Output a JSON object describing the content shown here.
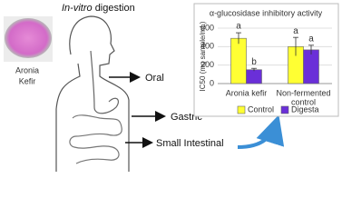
{
  "diagram": {
    "title_italic": "In-vitro",
    "title_rest": "digestion",
    "sample": [
      "Aronia",
      "Kefir"
    ],
    "stages": [
      "Oral",
      "Gastric",
      "Small Intestinal"
    ]
  },
  "chart_data": {
    "type": "bar",
    "title": "α-glucosidase inhibitory activity",
    "y_label": "IC50 (mg sample/mL)",
    "categories": [
      "Aronia kefir",
      [
        "Non-fermented",
        "control"
      ]
    ],
    "series": [
      {
        "name": "Control",
        "color": "#ffff33",
        "values": [
          490,
          400
        ],
        "errors": [
          60,
          100
        ],
        "letters": [
          "a",
          "a"
        ]
      },
      {
        "name": "Digesta",
        "color": "#6a2fd8",
        "values": [
          150,
          365
        ],
        "errors": [
          15,
          50
        ],
        "letters": [
          "b",
          "a"
        ]
      }
    ],
    "ylim": [
      0,
      600
    ],
    "yticks": [
      0,
      200,
      400,
      600
    ],
    "grid": true,
    "legend": "bottom"
  }
}
